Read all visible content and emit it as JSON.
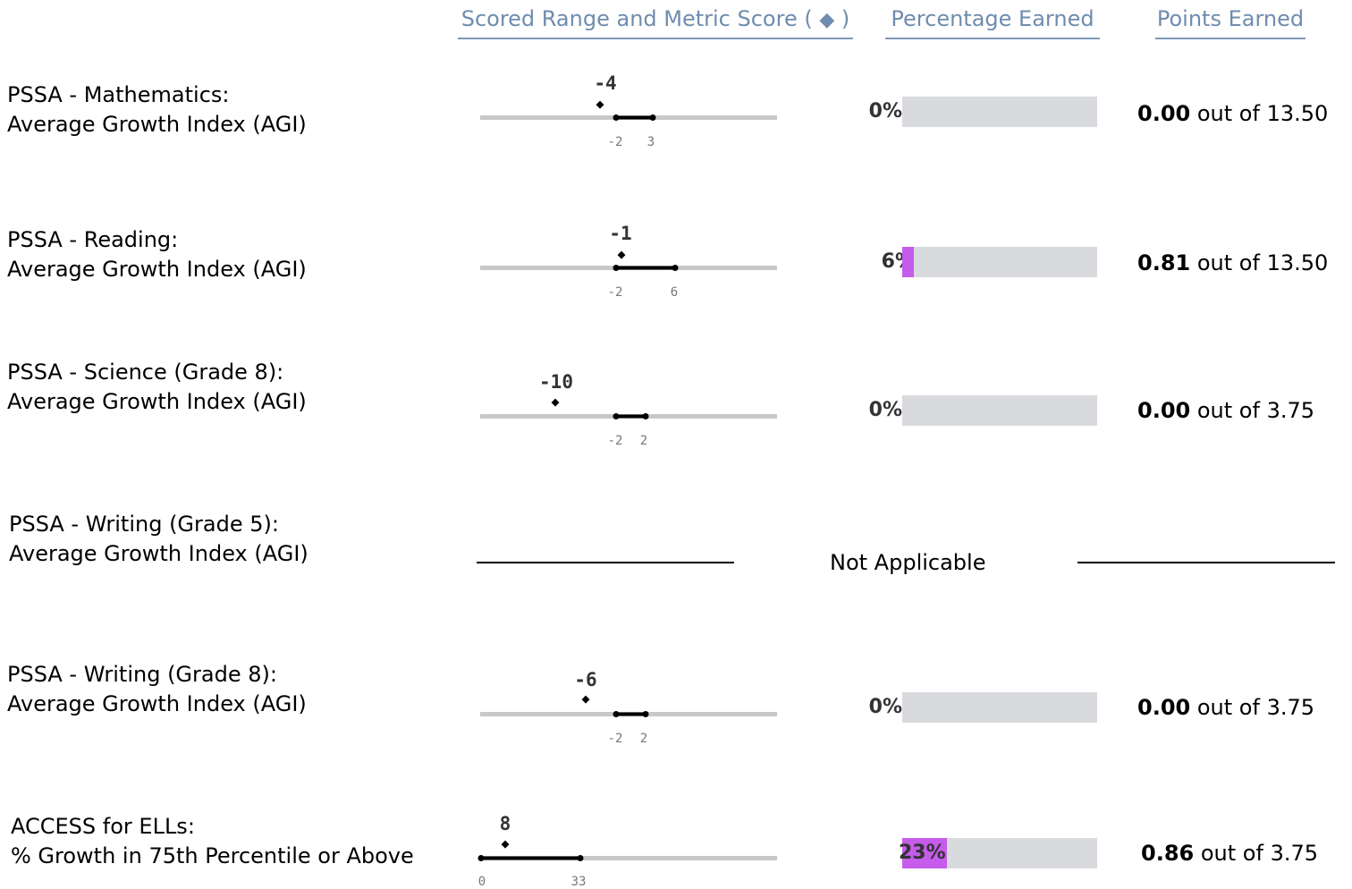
{
  "headers": {
    "scored_range_prefix": "Scored Range and Metric Score (",
    "scored_range_suffix": ")",
    "percentage": "Percentage Earned",
    "points": "Points Earned"
  },
  "colors": {
    "header": "#6f8cae",
    "bar_fill": "#c65ceb",
    "bar_empty": "#d8dadd"
  },
  "rows": [
    {
      "line1": "PSSA - Mathematics:",
      "line2": "Average Growth Index (AGI)",
      "score": "-4",
      "score_value": -4,
      "range_low": "-2",
      "range_high": "3",
      "percent": "0%",
      "percent_value": 0,
      "points": "0.00",
      "out_of": "out of",
      "max": "13.50"
    },
    {
      "line1": "PSSA - Reading:",
      "line2": "Average Growth Index (AGI)",
      "score": "-1",
      "score_value": -1,
      "range_low": "-2",
      "range_high": "6",
      "percent": "6%",
      "percent_value": 6,
      "points": "0.81",
      "out_of": "out of",
      "max": "13.50"
    },
    {
      "line1": "PSSA - Science (Grade 8):",
      "line2": "Average Growth Index (AGI)",
      "score": "-10",
      "score_value": -10,
      "range_low": "-2",
      "range_high": "2",
      "percent": "0%",
      "percent_value": 0,
      "points": "0.00",
      "out_of": "out of",
      "max": "3.75"
    },
    {
      "line1": "PSSA - Writing (Grade 5):",
      "line2": "Average Growth Index (AGI)",
      "not_applicable": "Not Applicable"
    },
    {
      "line1": "PSSA - Writing (Grade 8):",
      "line2": "Average Growth Index (AGI)",
      "score": "-6",
      "score_value": -6,
      "range_low": "-2",
      "range_high": "2",
      "percent": "0%",
      "percent_value": 0,
      "points": "0.00",
      "out_of": "out of",
      "max": "3.75"
    },
    {
      "line1": "ACCESS for ELLs:",
      "line2": "% Growth in 75th Percentile or Above",
      "score": "8",
      "score_value": 8,
      "range_low": "0",
      "range_high": "33",
      "percent": "23%",
      "percent_value": 23,
      "points": "0.86",
      "out_of": "out of",
      "max": "3.75"
    }
  ]
}
